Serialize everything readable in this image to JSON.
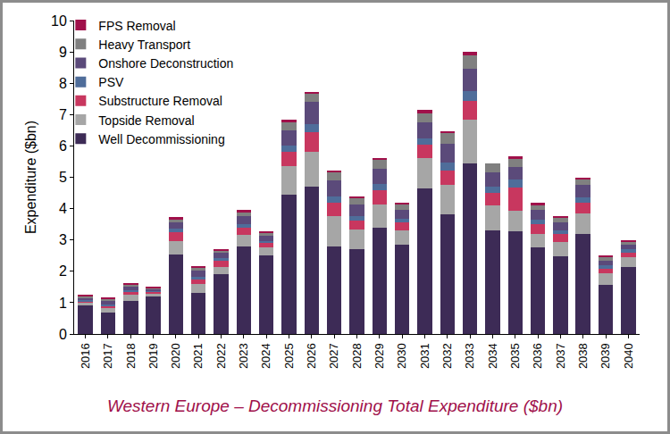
{
  "chart_data": {
    "type": "bar",
    "title": "Western Europe – Decommissioning Total Expenditure ($bn)",
    "y_label": "Expenditure ($bn)",
    "categories": [
      "2016",
      "2017",
      "2018",
      "2019",
      "2020",
      "2021",
      "2022",
      "2023",
      "2024",
      "2025",
      "2026",
      "2027",
      "2028",
      "2029",
      "2030",
      "2031",
      "2032",
      "2033",
      "2034",
      "2035",
      "2036",
      "2037",
      "2038",
      "2039",
      "2040"
    ],
    "series": [
      {
        "name": "Well Decommissioning",
        "color": "#3d2b56",
        "values": [
          0.9,
          0.68,
          1.05,
          1.2,
          2.55,
          1.3,
          1.9,
          2.8,
          2.5,
          4.45,
          4.7,
          2.8,
          2.72,
          3.38,
          2.85,
          4.65,
          3.82,
          5.45,
          3.3,
          3.28,
          2.75,
          2.48,
          3.2,
          1.58,
          2.15
        ]
      },
      {
        "name": "Topside Removal",
        "color": "#a6a6a6",
        "values": [
          0.1,
          0.15,
          0.2,
          0.1,
          0.4,
          0.3,
          0.25,
          0.35,
          0.25,
          0.9,
          1.1,
          0.95,
          0.6,
          0.75,
          0.45,
          0.95,
          0.95,
          1.4,
          0.8,
          0.65,
          0.45,
          0.45,
          0.65,
          0.35,
          0.3
        ]
      },
      {
        "name": "Substructure Removal",
        "color": "#c8375f",
        "values": [
          0.05,
          0.08,
          0.1,
          0.05,
          0.3,
          0.15,
          0.2,
          0.25,
          0.15,
          0.45,
          0.65,
          0.45,
          0.3,
          0.45,
          0.25,
          0.45,
          0.45,
          0.6,
          0.4,
          0.75,
          0.3,
          0.25,
          0.35,
          0.15,
          0.15
        ]
      },
      {
        "name": "PSV",
        "color": "#4f6d9a",
        "values": [
          0.03,
          0.04,
          0.05,
          0.03,
          0.1,
          0.08,
          0.08,
          0.1,
          0.07,
          0.2,
          0.25,
          0.2,
          0.15,
          0.2,
          0.12,
          0.2,
          0.25,
          0.3,
          0.2,
          0.25,
          0.15,
          0.12,
          0.15,
          0.1,
          0.1
        ]
      },
      {
        "name": "Onshore Deconstruction",
        "color": "#5b4a7a",
        "values": [
          0.07,
          0.1,
          0.1,
          0.07,
          0.2,
          0.2,
          0.15,
          0.25,
          0.15,
          0.5,
          0.7,
          0.5,
          0.35,
          0.5,
          0.3,
          0.5,
          0.6,
          0.7,
          0.45,
          0.4,
          0.3,
          0.25,
          0.4,
          0.15,
          0.15
        ]
      },
      {
        "name": "Heavy Transport",
        "color": "#808080",
        "values": [
          0.07,
          0.07,
          0.07,
          0.03,
          0.12,
          0.08,
          0.08,
          0.15,
          0.1,
          0.25,
          0.25,
          0.25,
          0.22,
          0.27,
          0.18,
          0.3,
          0.35,
          0.45,
          0.3,
          0.25,
          0.15,
          0.15,
          0.17,
          0.12,
          0.1
        ]
      },
      {
        "name": "FPS Removal",
        "color": "#a0104a",
        "values": [
          0.03,
          0.03,
          0.03,
          0.02,
          0.05,
          0.04,
          0.04,
          0.05,
          0.05,
          0.1,
          0.07,
          0.07,
          0.06,
          0.07,
          0.05,
          0.1,
          0.05,
          0.1,
          0,
          0.1,
          0.08,
          0.07,
          0.08,
          0.07,
          0.05
        ]
      }
    ],
    "ylim": [
      0,
      10
    ],
    "yticks": [
      0,
      1,
      2,
      3,
      4,
      5,
      6,
      7,
      8,
      9,
      10
    ],
    "stacked": true,
    "grid": false,
    "legend": "top-left"
  }
}
